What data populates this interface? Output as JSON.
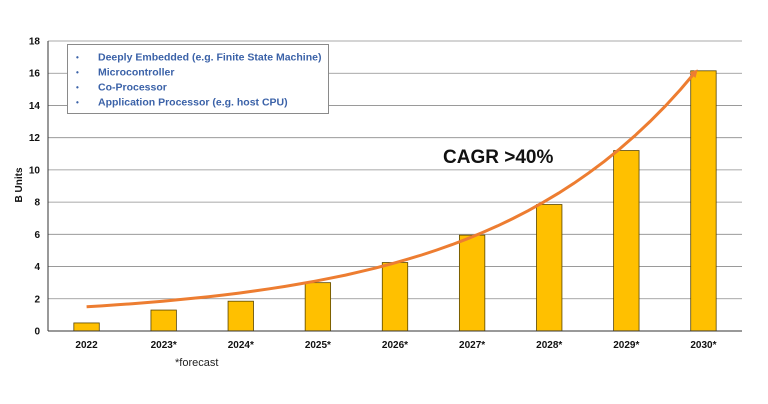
{
  "chart_data": {
    "type": "bar",
    "categories": [
      "2022",
      "2023*",
      "2024*",
      "2025*",
      "2026*",
      "2027*",
      "2028*",
      "2029*",
      "2030*"
    ],
    "values": [
      0.5,
      1.3,
      1.85,
      3.0,
      4.25,
      5.95,
      7.85,
      11.2,
      16.15
    ],
    "ylabel": "B Units",
    "ylim": [
      0,
      18
    ],
    "yticks": [
      0,
      2,
      4,
      6,
      8,
      10,
      12,
      14,
      16,
      18
    ],
    "grid": true,
    "bar_color": "#FFC000",
    "bar_edge_color": "#5a4600",
    "trend_color": "#ED7D31",
    "annotation": "CAGR >40%",
    "footnote": "*forecast",
    "legend_placement": "top-left",
    "legend": [
      "Deeply Embedded (e.g. Finite State Machine)",
      "Microcontroller",
      "Co-Processor",
      "Application Processor (e.g. host CPU)"
    ],
    "legend_color": "#3b62a8"
  }
}
